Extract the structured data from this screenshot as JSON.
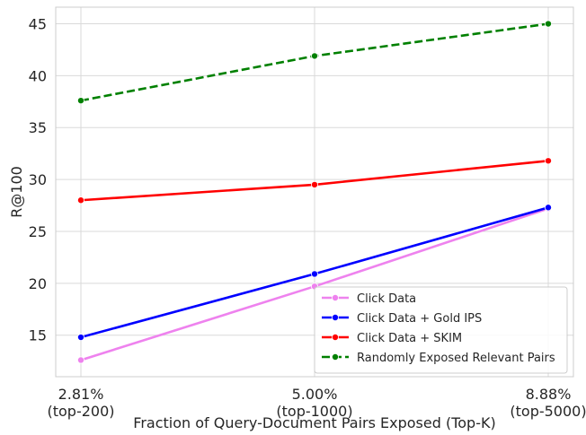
{
  "chart_data": {
    "type": "line",
    "xlabel": "Fraction of Query-Document Pairs Exposed (Top-K)",
    "ylabel": "R@100",
    "categories": [
      [
        "2.81%",
        "(top-200)"
      ],
      [
        "5.00%",
        "(top-1000)"
      ],
      [
        "8.88%",
        "(top-5000)"
      ]
    ],
    "ylim": [
      11.0,
      46.6
    ],
    "yticks": [
      15,
      20,
      25,
      30,
      35,
      40,
      45
    ],
    "grid": true,
    "legend_position": "lower-right",
    "series": [
      {
        "name": "Click Data",
        "values": [
          12.6,
          19.7,
          27.2
        ],
        "color": "#ee82ee",
        "dashed": false
      },
      {
        "name": "Click Data + Gold IPS",
        "values": [
          14.8,
          20.9,
          27.3
        ],
        "color": "#0000ff",
        "dashed": false
      },
      {
        "name": "Click Data + SKIM",
        "values": [
          28.0,
          29.5,
          31.8
        ],
        "color": "#ff0000",
        "dashed": false
      },
      {
        "name": "Randomly Exposed Relevant Pairs",
        "values": [
          37.6,
          41.9,
          45.0
        ],
        "color": "#008000",
        "dashed": true
      }
    ]
  }
}
